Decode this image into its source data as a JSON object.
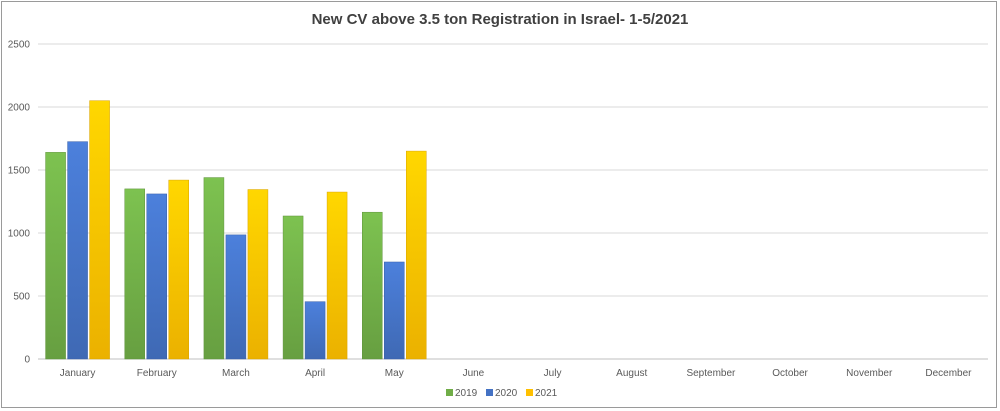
{
  "chart_data": {
    "type": "bar",
    "title": "New CV above 3.5 ton Registration in Israel- 1-5/2021",
    "xlabel": "",
    "ylabel": "",
    "ylim": [
      0,
      2500
    ],
    "yticks": [
      0,
      500,
      1000,
      1500,
      2000,
      2500
    ],
    "grid": true,
    "legend_position": "bottom",
    "categories": [
      "January",
      "February",
      "March",
      "April",
      "May",
      "June",
      "July",
      "August",
      "September",
      "October",
      "November",
      "December"
    ],
    "series": [
      {
        "name": "2019",
        "color": "#70ad47",
        "values": [
          1640,
          1350,
          1440,
          1135,
          1165,
          null,
          null,
          null,
          null,
          null,
          null,
          null
        ]
      },
      {
        "name": "2020",
        "color": "#4472c4",
        "values": [
          1725,
          1310,
          985,
          455,
          770,
          null,
          null,
          null,
          null,
          null,
          null,
          null
        ]
      },
      {
        "name": "2021",
        "color": "#ffc000",
        "values": [
          2050,
          1420,
          1345,
          1325,
          1650,
          null,
          null,
          null,
          null,
          null,
          null,
          null
        ]
      }
    ]
  }
}
